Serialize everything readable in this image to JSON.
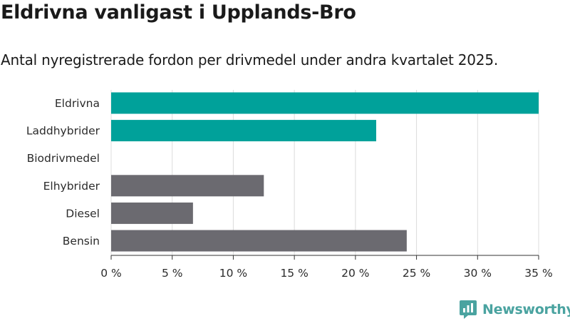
{
  "header": {
    "title": "Eldrivna vanligast i Upplands-Bro",
    "subtitle": "Antal nyregistrerade fordon per drivmedel under andra kvartalet 2025."
  },
  "chart_data": {
    "type": "bar",
    "orientation": "horizontal",
    "categories": [
      "Eldrivna",
      "Laddhybrider",
      "Biodrivmedel",
      "Elhybrider",
      "Diesel",
      "Bensin"
    ],
    "values": [
      35.0,
      21.7,
      0.0,
      12.5,
      6.7,
      24.2
    ],
    "colors": [
      "#00a19a",
      "#00a19a",
      "#00a19a",
      "#6b6a70",
      "#6b6a70",
      "#6b6a70"
    ],
    "xlim": [
      0,
      35
    ],
    "xticks": [
      0,
      5,
      10,
      15,
      20,
      25,
      30,
      35
    ],
    "tick_suffix": " %",
    "grid": "vertical"
  },
  "brand": {
    "name": "Newsworthy",
    "icon": "newsworthy-logo-icon",
    "color": "#4aa3a0"
  }
}
